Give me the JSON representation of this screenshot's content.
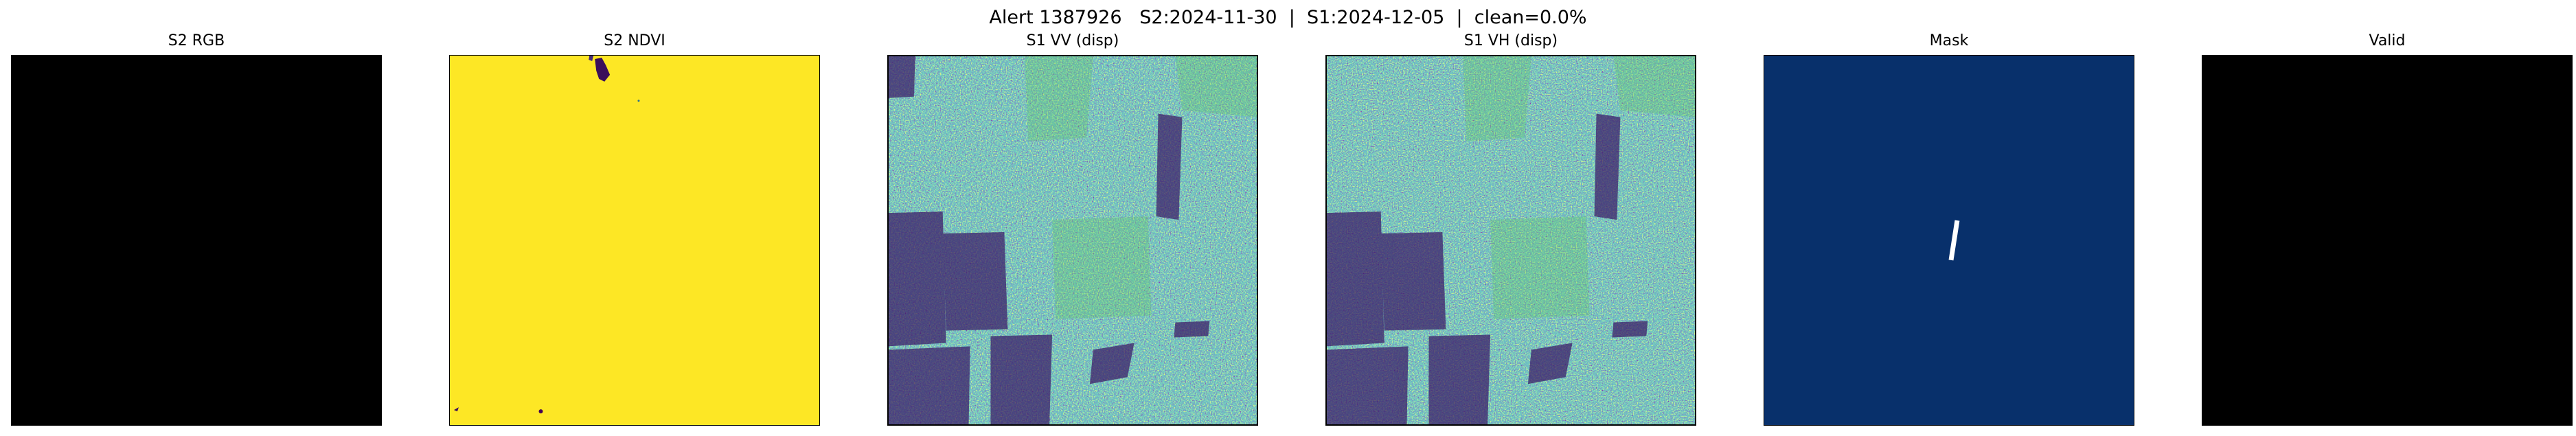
{
  "figure": {
    "title": "Alert 1387926   S2:2024-11-30  |  S1:2024-12-05  |  clean=0.0%"
  },
  "panels": [
    {
      "title": "S2 RGB",
      "image": "all-black"
    },
    {
      "title": "S2 NDVI",
      "image": "yellow field with small dark patches",
      "colormap": "viridis"
    },
    {
      "title": "S1 VV (disp)",
      "image": "speckled radar backscatter",
      "colormap": "viridis"
    },
    {
      "title": "S1 VH (disp)",
      "image": "speckled radar backscatter",
      "colormap": "viridis"
    },
    {
      "title": "Mask",
      "image": "dark blue with single white line segment",
      "colormap": "Blues"
    },
    {
      "title": "Valid",
      "image": "all-black"
    }
  ],
  "colors": {
    "viridis_yellow": "#fde725",
    "viridis_purple": "#440154",
    "mask_bg": "#08306b",
    "mask_fg": "#ffffff"
  }
}
